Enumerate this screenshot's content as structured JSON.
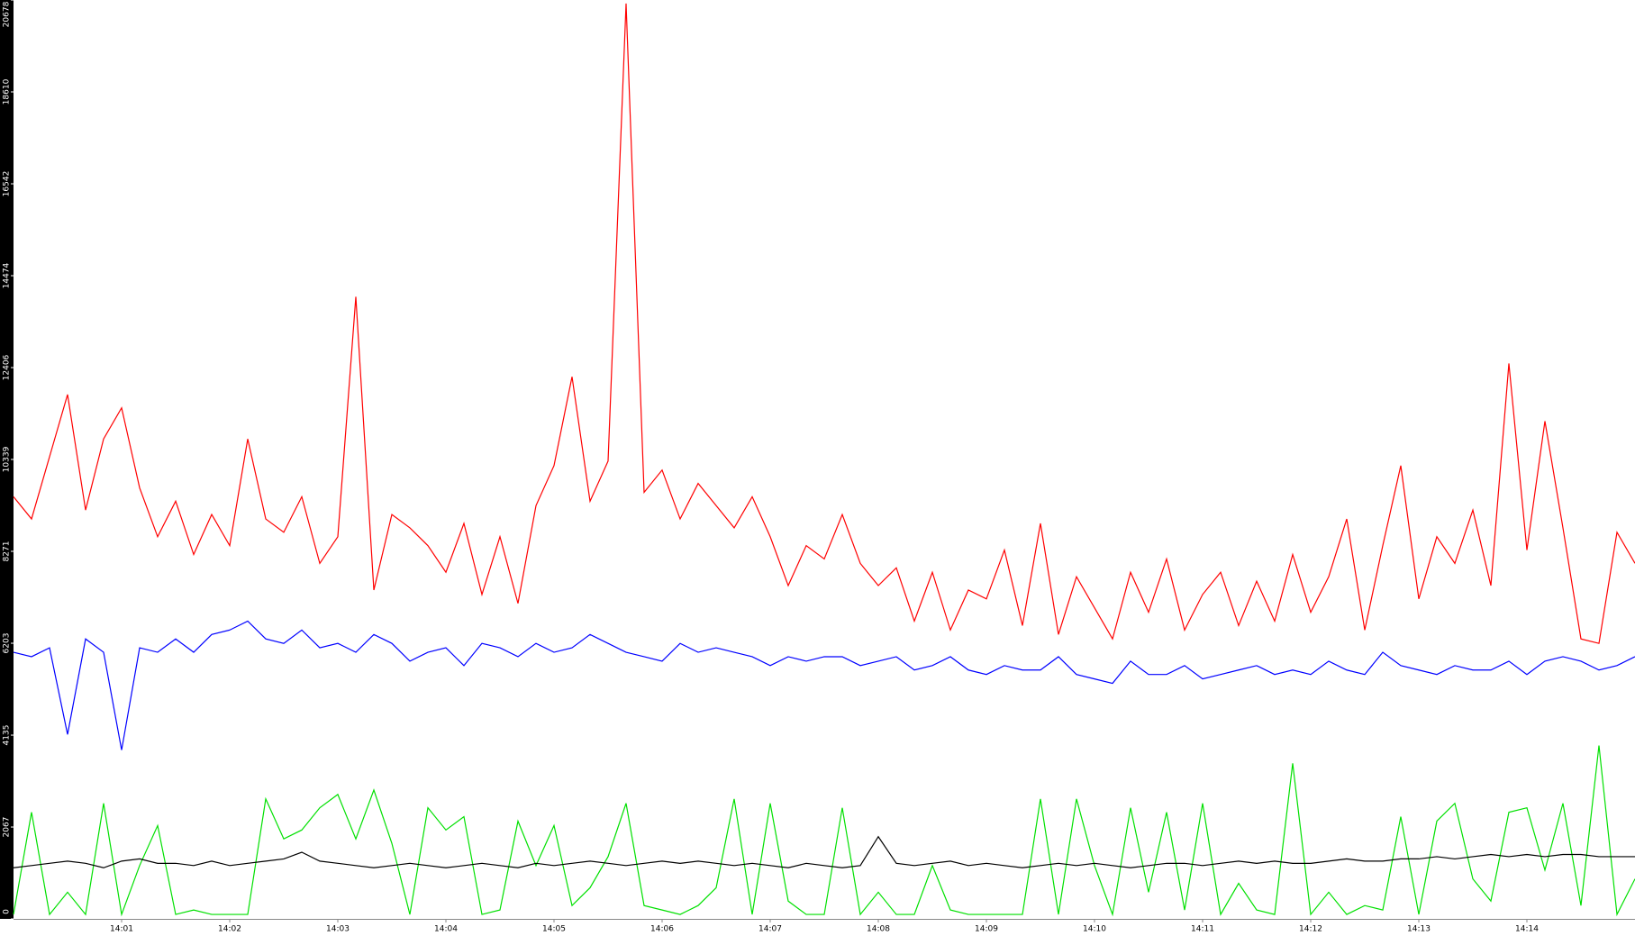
{
  "chart_data": {
    "type": "line",
    "categories": [
      null,
      null,
      null,
      null,
      null,
      null,
      "14:01",
      null,
      null,
      null,
      null,
      null,
      "14:02",
      null,
      null,
      null,
      null,
      null,
      "14:03",
      null,
      null,
      null,
      null,
      null,
      "14:04",
      null,
      null,
      null,
      null,
      null,
      "14:05",
      null,
      null,
      null,
      null,
      null,
      "14:06",
      null,
      null,
      null,
      null,
      null,
      "14:07",
      null,
      null,
      null,
      null,
      null,
      "14:08",
      null,
      null,
      null,
      null,
      null,
      "14:09",
      null,
      null,
      null,
      null,
      null,
      "14:10",
      null,
      null,
      null,
      null,
      null,
      "14:11",
      null,
      null,
      null,
      null,
      null,
      "14:12",
      null,
      null,
      null,
      null,
      null,
      "14:13",
      null,
      null,
      null,
      null,
      null,
      "14:14",
      null,
      null,
      null,
      null,
      null,
      null
    ],
    "series": [
      {
        "color": "#ff0000",
        "values": [
          9500,
          9000,
          10400,
          11800,
          9200,
          10800,
          11500,
          9700,
          8600,
          9400,
          8200,
          9100,
          8400,
          10800,
          9000,
          8700,
          9500,
          8000,
          8600,
          14000,
          7400,
          9100,
          8800,
          8400,
          7800,
          8900,
          7300,
          8600,
          7100,
          9300,
          10200,
          12200,
          9400,
          10300,
          20600,
          9600,
          10100,
          9000,
          9800,
          9300,
          8800,
          9500,
          8600,
          7500,
          8400,
          8100,
          9100,
          8000,
          7500,
          7900,
          6700,
          7800,
          6500,
          7400,
          7200,
          8300,
          6600,
          8900,
          6400,
          7700,
          7000,
          6300,
          7800,
          6900,
          8100,
          6500,
          7300,
          7800,
          6600,
          7600,
          6700,
          8200,
          6900,
          7700,
          9000,
          6500,
          8400,
          10200,
          7200,
          8600,
          8000,
          9200,
          7500,
          12500,
          8300,
          11200,
          8800,
          6300,
          6200,
          8700,
          8000
        ]
      },
      {
        "color": "#0000ff",
        "values": [
          6000,
          5900,
          6100,
          4150,
          6300,
          6000,
          3800,
          6100,
          6000,
          6300,
          6000,
          6400,
          6500,
          6700,
          6300,
          6200,
          6500,
          6100,
          6200,
          6000,
          6400,
          6200,
          5800,
          6000,
          6100,
          5700,
          6200,
          6100,
          5900,
          6200,
          6000,
          6100,
          6400,
          6200,
          6000,
          5900,
          5800,
          6200,
          6000,
          6100,
          6000,
          5900,
          5700,
          5900,
          5800,
          5900,
          5900,
          5700,
          5800,
          5900,
          5600,
          5700,
          5900,
          5600,
          5500,
          5700,
          5600,
          5600,
          5900,
          5500,
          5400,
          5300,
          5800,
          5500,
          5500,
          5700,
          5400,
          5500,
          5600,
          5700,
          5500,
          5600,
          5500,
          5800,
          5600,
          5500,
          6000,
          5700,
          5600,
          5500,
          5700,
          5600,
          5600,
          5800,
          5500,
          5800,
          5900,
          5800,
          5600,
          5700,
          5900
        ]
      },
      {
        "color": "#000000",
        "values": [
          1150,
          1200,
          1250,
          1300,
          1250,
          1150,
          1300,
          1350,
          1250,
          1250,
          1200,
          1300,
          1200,
          1250,
          1300,
          1350,
          1500,
          1300,
          1250,
          1200,
          1150,
          1200,
          1250,
          1200,
          1150,
          1200,
          1250,
          1200,
          1150,
          1250,
          1200,
          1250,
          1300,
          1250,
          1200,
          1250,
          1300,
          1250,
          1300,
          1250,
          1200,
          1250,
          1200,
          1150,
          1250,
          1200,
          1150,
          1200,
          1850,
          1250,
          1200,
          1250,
          1300,
          1200,
          1250,
          1200,
          1150,
          1200,
          1250,
          1200,
          1250,
          1200,
          1150,
          1200,
          1250,
          1250,
          1200,
          1250,
          1300,
          1250,
          1300,
          1250,
          1250,
          1300,
          1350,
          1300,
          1300,
          1350,
          1350,
          1400,
          1350,
          1400,
          1450,
          1400,
          1450,
          1400,
          1450,
          1450,
          1400,
          1400,
          1400
        ]
      },
      {
        "color": "#00e000",
        "values": [
          100,
          2400,
          100,
          600,
          100,
          2600,
          100,
          1200,
          2100,
          100,
          200,
          100,
          100,
          100,
          2700,
          1800,
          2000,
          2500,
          2800,
          1800,
          2900,
          1700,
          100,
          2500,
          2000,
          2300,
          100,
          200,
          2200,
          1200,
          2100,
          300,
          700,
          1400,
          2600,
          300,
          200,
          100,
          300,
          700,
          2700,
          100,
          2600,
          400,
          100,
          100,
          2500,
          100,
          600,
          100,
          100,
          1200,
          200,
          100,
          100,
          100,
          100,
          2700,
          100,
          2700,
          1200,
          100,
          2500,
          600,
          2400,
          200,
          2600,
          100,
          800,
          200,
          100,
          3500,
          100,
          600,
          100,
          300,
          200,
          2300,
          100,
          2200,
          2600,
          900,
          400,
          2400,
          2500,
          1100,
          2600,
          300,
          3900,
          100,
          900
        ]
      }
    ],
    "ylim": [
      0,
      20678
    ],
    "yticks": [
      0,
      2067,
      4135,
      6203,
      8271,
      10339,
      12406,
      14474,
      16542,
      18610,
      20678
    ]
  }
}
